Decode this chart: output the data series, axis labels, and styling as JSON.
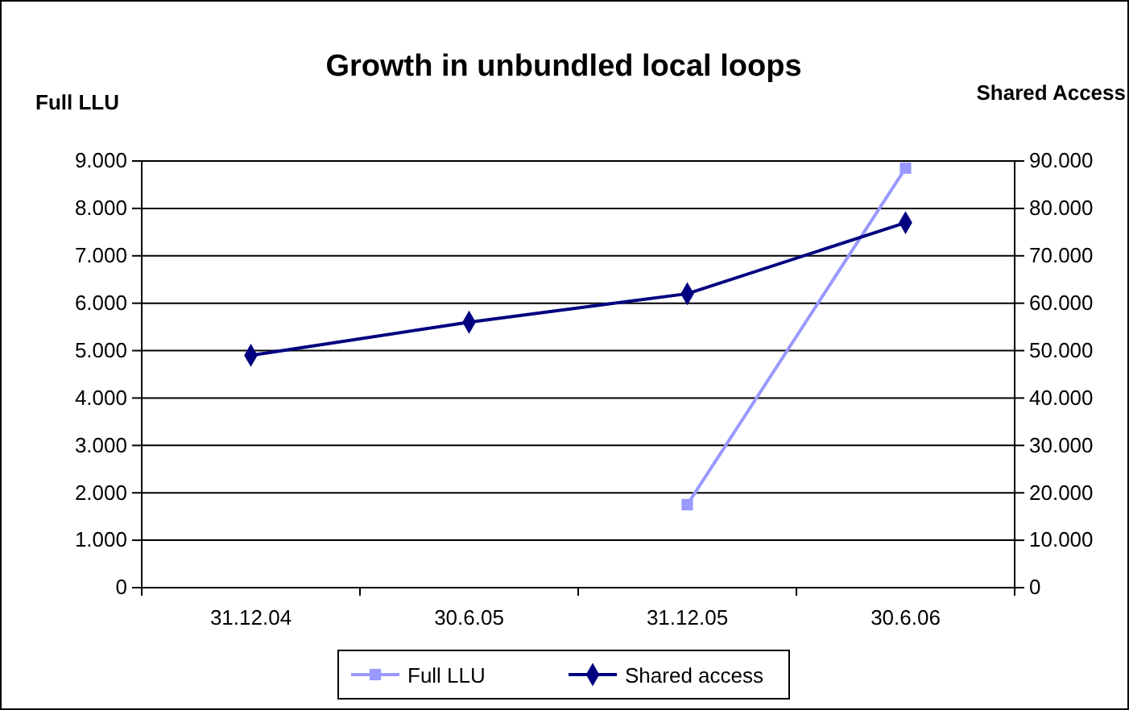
{
  "chart_data": {
    "type": "line",
    "title": "Growth in unbundled local loops",
    "ylabel": "Full LLU",
    "y2label": "Shared Access",
    "categories": [
      "31.12.04",
      "30.6.05",
      "31.12.05",
      "30.6.06"
    ],
    "series": [
      {
        "name": "Full LLU",
        "color": "#9999ff",
        "marker": "square",
        "values": [
          null,
          null,
          1750,
          8850
        ]
      },
      {
        "name": "Shared access",
        "color": "#000080",
        "marker": "diamond",
        "axis": "y2",
        "values": [
          49000,
          56000,
          62000,
          77000
        ]
      }
    ],
    "ylim": [
      0,
      9000
    ],
    "yticks": [
      {
        "value": 0,
        "label": "0"
      },
      {
        "value": 1000,
        "label": "1.000"
      },
      {
        "value": 2000,
        "label": "2.000"
      },
      {
        "value": 3000,
        "label": "3.000"
      },
      {
        "value": 4000,
        "label": "4.000"
      },
      {
        "value": 5000,
        "label": "5.000"
      },
      {
        "value": 6000,
        "label": "6.000"
      },
      {
        "value": 7000,
        "label": "7.000"
      },
      {
        "value": 8000,
        "label": "8.000"
      },
      {
        "value": 9000,
        "label": "9.000"
      }
    ],
    "y2lim": [
      0,
      90000
    ],
    "y2ticks": [
      {
        "value": 0,
        "label": "0"
      },
      {
        "value": 10000,
        "label": "10.000"
      },
      {
        "value": 20000,
        "label": "20.000"
      },
      {
        "value": 30000,
        "label": "30.000"
      },
      {
        "value": 40000,
        "label": "40.000"
      },
      {
        "value": 50000,
        "label": "50.000"
      },
      {
        "value": 60000,
        "label": "60.000"
      },
      {
        "value": 70000,
        "label": "70.000"
      },
      {
        "value": 80000,
        "label": "80.000"
      },
      {
        "value": 90000,
        "label": "90.000"
      }
    ],
    "grid": "y",
    "legend": "bottom",
    "line_style": "solid"
  }
}
